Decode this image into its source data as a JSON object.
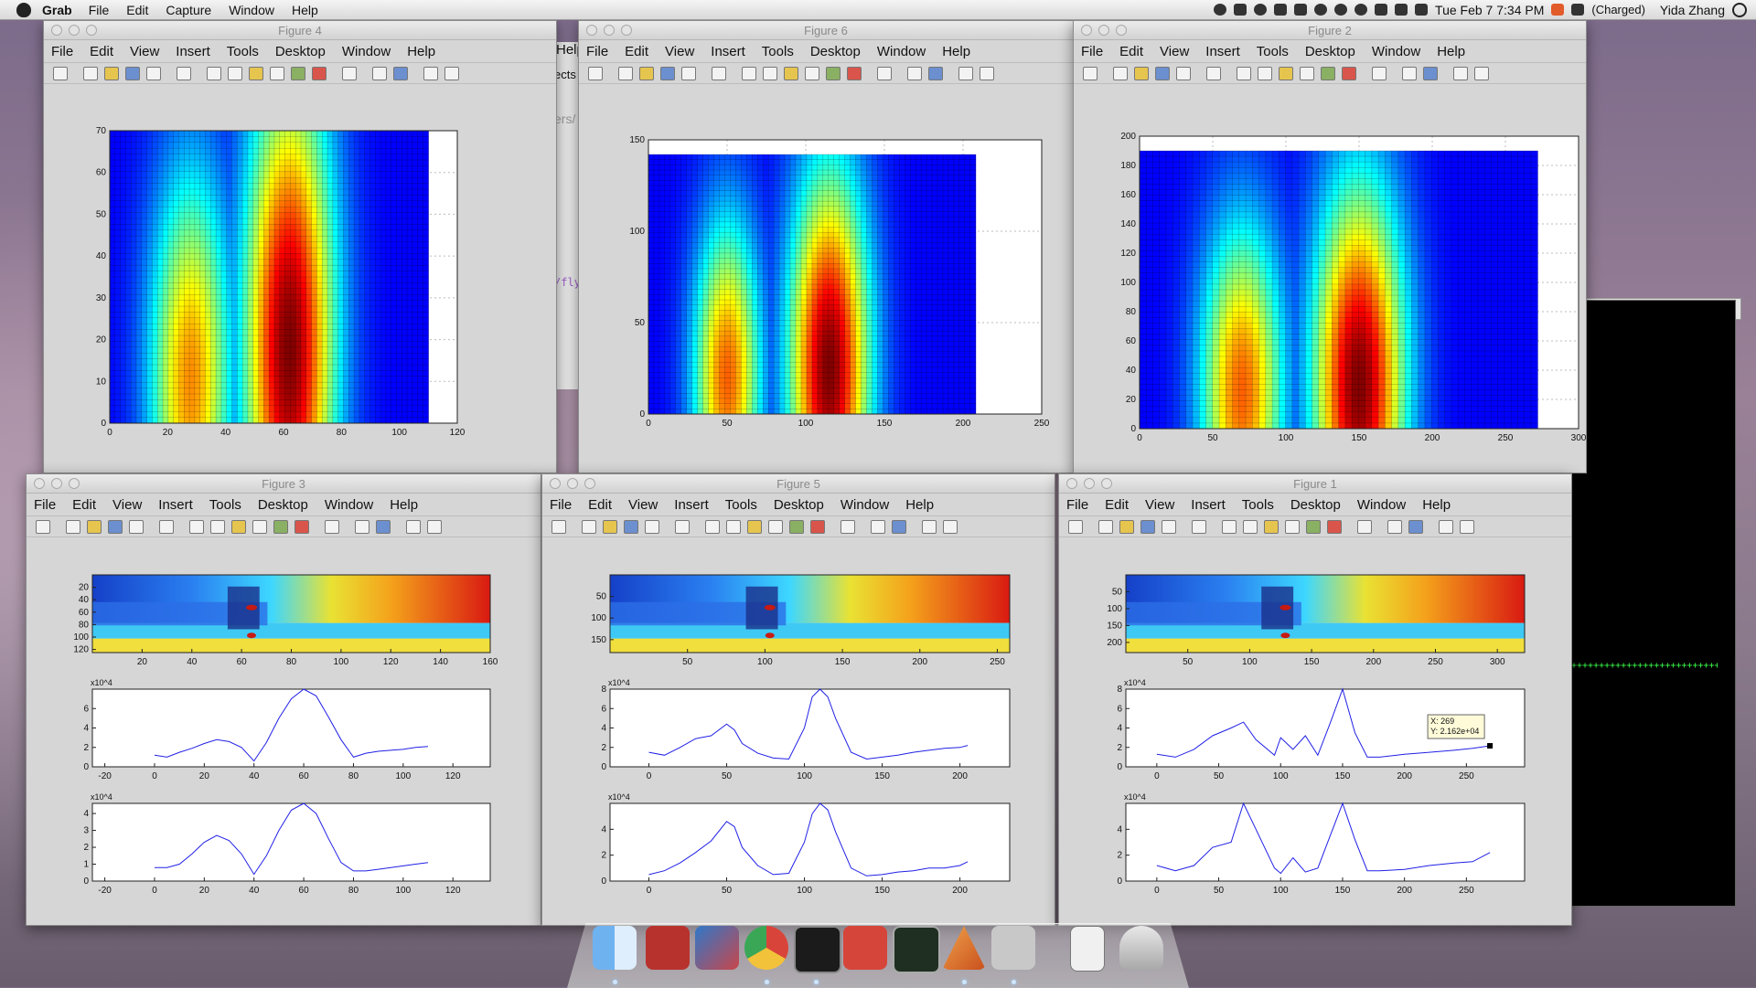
{
  "menubar": {
    "app": "Grab",
    "items": [
      "File",
      "Edit",
      "Capture",
      "Window",
      "Help"
    ],
    "clock": "Tue Feb 7  7:34 PM",
    "battery": "(Charged)",
    "user": "Yida Zhang"
  },
  "figure_menu": [
    "File",
    "Edit",
    "View",
    "Insert",
    "Tools",
    "Desktop",
    "Window",
    "Help"
  ],
  "windows": {
    "fig4": {
      "title": "Figure 4"
    },
    "fig6": {
      "title": "Figure 6"
    },
    "fig2": {
      "title": "Figure 2"
    },
    "fig3": {
      "title": "Figure 3"
    },
    "fig5": {
      "title": "Figure 5"
    },
    "fig1": {
      "title": "Figure 1"
    }
  },
  "background_fragments": {
    "help": "Help",
    "ects": "ects",
    "path": "ers/",
    "code": "/fly"
  },
  "chart_data": [
    {
      "id": "fig4",
      "type": "heatmap",
      "xlim": [
        0,
        120
      ],
      "ylim": [
        0,
        70
      ],
      "xticks": [
        0,
        20,
        40,
        60,
        80,
        100,
        120
      ],
      "yticks": [
        0,
        10,
        20,
        30,
        40,
        50,
        60,
        70
      ],
      "data_extent": [
        0,
        110,
        0,
        70
      ],
      "peaks": [
        {
          "x": 28,
          "y": 10,
          "w": 10,
          "h": 35,
          "a": 0.7
        },
        {
          "x": 62,
          "y": 18,
          "w": 11,
          "h": 45,
          "a": 1.0
        }
      ]
    },
    {
      "id": "fig6",
      "type": "heatmap",
      "xlim": [
        0,
        250
      ],
      "ylim": [
        0,
        150
      ],
      "xticks": [
        0,
        50,
        100,
        150,
        200,
        250
      ],
      "yticks": [
        0,
        50,
        100,
        150
      ],
      "data_extent": [
        0,
        208,
        0,
        142
      ],
      "peaks": [
        {
          "x": 50,
          "y": 20,
          "w": 15,
          "h": 60,
          "a": 0.75
        },
        {
          "x": 115,
          "y": 25,
          "w": 18,
          "h": 75,
          "a": 1.0
        }
      ]
    },
    {
      "id": "fig2",
      "type": "heatmap",
      "xlim": [
        0,
        300
      ],
      "ylim": [
        0,
        200
      ],
      "xticks": [
        0,
        50,
        100,
        150,
        200,
        250,
        300
      ],
      "yticks": [
        0,
        20,
        40,
        60,
        80,
        100,
        120,
        140,
        160,
        180,
        200
      ],
      "data_extent": [
        0,
        272,
        0,
        190
      ],
      "peaks": [
        {
          "x": 70,
          "y": 25,
          "w": 20,
          "h": 80,
          "a": 0.75
        },
        {
          "x": 150,
          "y": 30,
          "w": 22,
          "h": 95,
          "a": 1.0
        }
      ]
    },
    {
      "id": "fig3-img",
      "type": "heatmap",
      "xlim": [
        0,
        160
      ],
      "ylim": [
        0,
        125
      ],
      "xticks": [
        20,
        40,
        60,
        80,
        100,
        120,
        140,
        160
      ],
      "yticks": [
        20,
        40,
        60,
        80,
        100,
        120
      ]
    },
    {
      "id": "fig3-a",
      "type": "line",
      "xlim": [
        -25,
        135
      ],
      "ylim": [
        0,
        8
      ],
      "multiplier": "x10^4",
      "xticks": [
        -20,
        0,
        20,
        40,
        60,
        80,
        100,
        120
      ],
      "yticks": [
        0,
        2,
        4,
        6
      ],
      "x": [
        0,
        5,
        10,
        15,
        20,
        25,
        30,
        35,
        40,
        45,
        50,
        55,
        60,
        65,
        70,
        75,
        80,
        85,
        90,
        95,
        100,
        105,
        110
      ],
      "y": [
        1.2,
        1.0,
        1.5,
        1.9,
        2.4,
        2.8,
        2.6,
        2.0,
        0.6,
        2.5,
        5.0,
        7.0,
        8.0,
        7.3,
        5.1,
        2.8,
        1.0,
        1.4,
        1.6,
        1.7,
        1.8,
        2.0,
        2.1
      ]
    },
    {
      "id": "fig3-b",
      "type": "line",
      "xlim": [
        -25,
        135
      ],
      "ylim": [
        0,
        4.6
      ],
      "multiplier": "x10^4",
      "xticks": [
        -20,
        0,
        20,
        40,
        60,
        80,
        100,
        120
      ],
      "yticks": [
        0,
        1,
        2,
        3,
        4
      ],
      "x": [
        0,
        5,
        10,
        15,
        20,
        25,
        30,
        35,
        40,
        45,
        50,
        55,
        60,
        65,
        70,
        75,
        80,
        85,
        90,
        95,
        100,
        105,
        110
      ],
      "y": [
        0.8,
        0.8,
        1.0,
        1.6,
        2.3,
        2.7,
        2.4,
        1.6,
        0.4,
        1.5,
        3.0,
        4.2,
        4.6,
        4.0,
        2.5,
        1.1,
        0.6,
        0.6,
        0.7,
        0.8,
        0.9,
        1.0,
        1.1
      ]
    },
    {
      "id": "fig5-img",
      "type": "heatmap",
      "xlim": [
        0,
        258
      ],
      "ylim": [
        0,
        180
      ],
      "xticks": [
        50,
        100,
        150,
        200,
        250
      ],
      "yticks": [
        50,
        100,
        150
      ]
    },
    {
      "id": "fig5-a",
      "type": "line",
      "xlim": [
        -25,
        232
      ],
      "ylim": [
        0,
        8
      ],
      "multiplier": "x10^4",
      "xticks": [
        0,
        50,
        100,
        150,
        200
      ],
      "yticks": [
        0,
        2,
        4,
        6,
        8
      ],
      "x": [
        0,
        10,
        20,
        30,
        40,
        50,
        55,
        60,
        70,
        80,
        90,
        100,
        105,
        110,
        115,
        120,
        130,
        140,
        150,
        160,
        170,
        180,
        190,
        200,
        205
      ],
      "y": [
        1.5,
        1.2,
        2.0,
        2.9,
        3.2,
        4.4,
        3.8,
        2.4,
        1.4,
        0.9,
        0.8,
        4.0,
        7.2,
        8.0,
        7.2,
        5.0,
        1.5,
        0.8,
        1.0,
        1.2,
        1.5,
        1.7,
        1.9,
        2.0,
        2.2
      ]
    },
    {
      "id": "fig5-b",
      "type": "line",
      "xlim": [
        -25,
        232
      ],
      "ylim": [
        0,
        6
      ],
      "multiplier": "x10^4",
      "xticks": [
        0,
        50,
        100,
        150,
        200
      ],
      "yticks": [
        0,
        2,
        4
      ],
      "x": [
        0,
        10,
        20,
        30,
        40,
        50,
        55,
        60,
        70,
        80,
        90,
        100,
        105,
        110,
        115,
        120,
        130,
        140,
        150,
        160,
        170,
        180,
        190,
        200,
        205
      ],
      "y": [
        0.5,
        0.8,
        1.4,
        2.2,
        3.1,
        4.6,
        4.2,
        2.6,
        1.2,
        0.5,
        0.6,
        3.0,
        5.2,
        6.0,
        5.5,
        3.8,
        1.0,
        0.4,
        0.5,
        0.7,
        0.8,
        1.0,
        1.0,
        1.2,
        1.5
      ]
    },
    {
      "id": "fig1-img",
      "type": "heatmap",
      "xlim": [
        0,
        322
      ],
      "ylim": [
        0,
        230
      ],
      "xticks": [
        50,
        100,
        150,
        200,
        250,
        300
      ],
      "yticks": [
        50,
        100,
        150,
        200
      ]
    },
    {
      "id": "fig1-a",
      "type": "line",
      "xlim": [
        -25,
        297
      ],
      "ylim": [
        0,
        8
      ],
      "multiplier": "x10^4",
      "xticks": [
        0,
        50,
        100,
        150,
        200,
        250
      ],
      "yticks": [
        0,
        2,
        4,
        6,
        8
      ],
      "x": [
        0,
        15,
        30,
        45,
        60,
        70,
        80,
        95,
        100,
        110,
        120,
        130,
        140,
        150,
        160,
        170,
        180,
        200,
        220,
        240,
        255,
        269
      ],
      "y": [
        1.3,
        1.0,
        1.8,
        3.2,
        4.0,
        4.6,
        2.8,
        1.2,
        3.0,
        1.8,
        3.2,
        1.2,
        4.5,
        8.0,
        3.5,
        1.0,
        1.0,
        1.3,
        1.5,
        1.7,
        1.9,
        2.162
      ],
      "datatip": {
        "x_label": "X: 269",
        "y_label": "Y: 2.162e+04",
        "x": 269,
        "y": 2.162
      }
    },
    {
      "id": "fig1-b",
      "type": "line",
      "xlim": [
        -25,
        297
      ],
      "ylim": [
        0,
        6
      ],
      "multiplier": "x10^4",
      "xticks": [
        0,
        50,
        100,
        150,
        200,
        250
      ],
      "yticks": [
        0,
        2,
        4
      ],
      "x": [
        0,
        15,
        30,
        45,
        60,
        70,
        80,
        95,
        100,
        110,
        120,
        130,
        140,
        150,
        160,
        170,
        180,
        200,
        220,
        240,
        255,
        269
      ],
      "y": [
        1.2,
        0.8,
        1.2,
        2.6,
        3.0,
        6.0,
        4.0,
        1.0,
        0.6,
        1.8,
        0.7,
        1.0,
        3.5,
        6.0,
        3.2,
        0.8,
        0.8,
        0.9,
        1.2,
        1.4,
        1.5,
        2.2
      ]
    }
  ]
}
